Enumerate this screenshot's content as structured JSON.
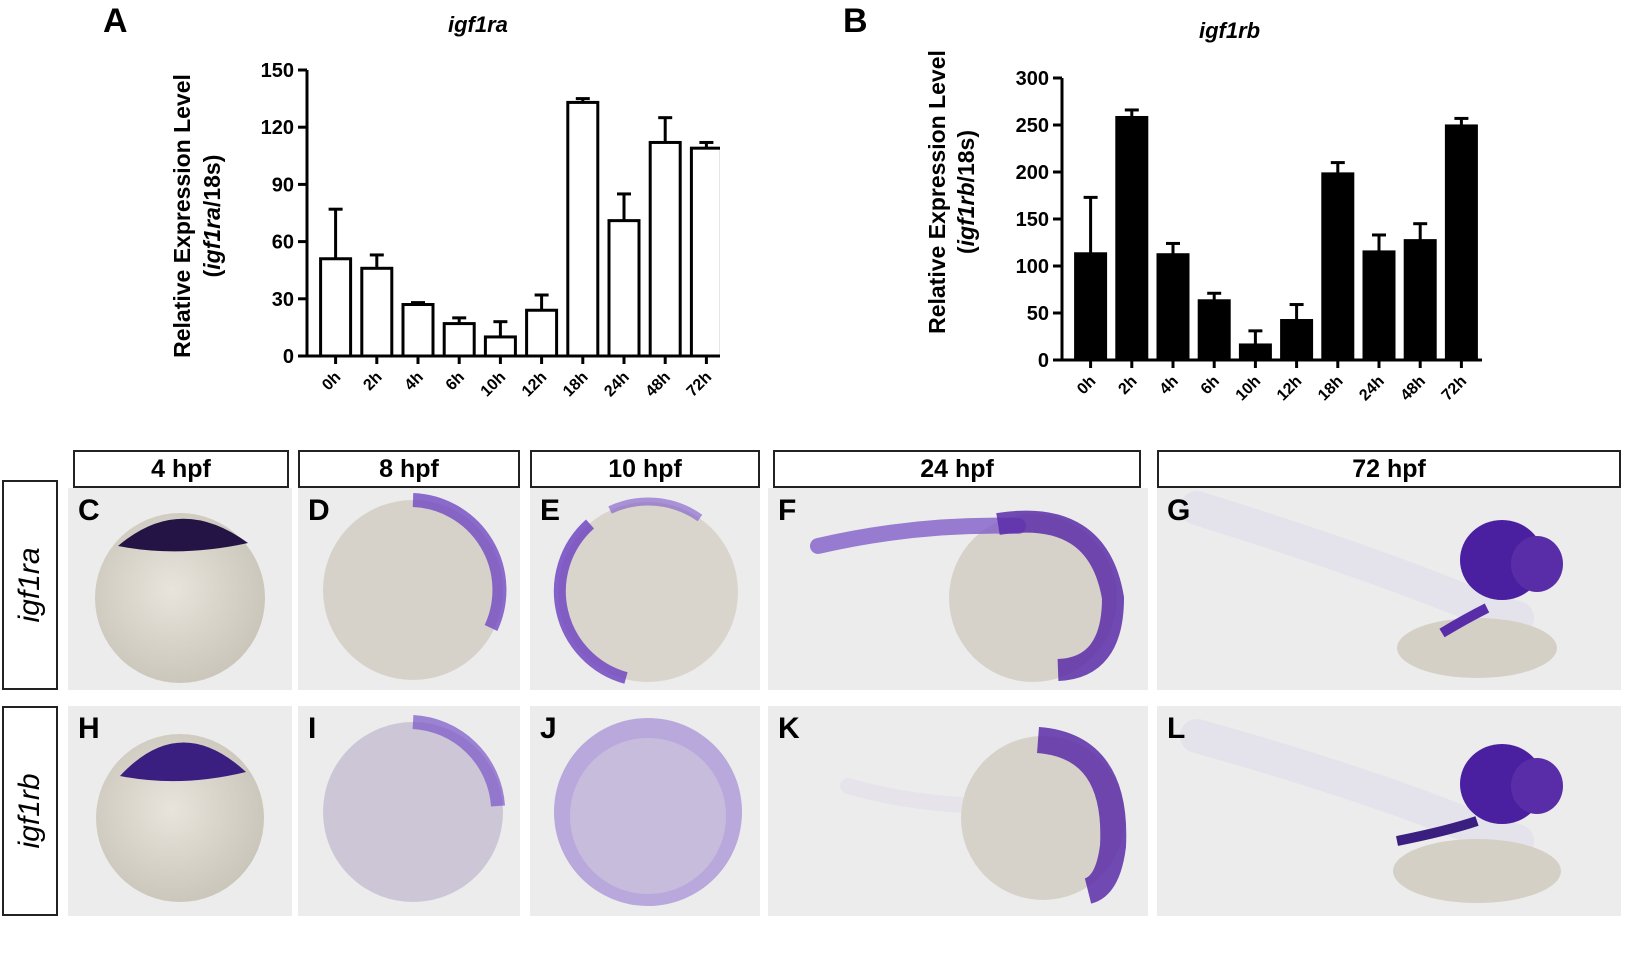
{
  "panels": {
    "a_letter": "A",
    "b_letter": "B"
  },
  "chart_data": [
    {
      "type": "bar",
      "title": "igf1ra",
      "ylabel_line1": "Relative Expression Level",
      "ylabel_gene": "igf1ra",
      "ylabel_rest": "/18s",
      "categories": [
        "0h",
        "2h",
        "4h",
        "6h",
        "10h",
        "12h",
        "18h",
        "24h",
        "48h",
        "72h"
      ],
      "values": [
        51,
        46,
        27,
        17,
        10,
        24,
        133,
        71,
        112,
        109
      ],
      "errors": [
        26,
        7,
        1,
        3,
        8,
        8,
        2,
        14,
        13,
        3
      ],
      "yticks": [
        "0",
        "30",
        "60",
        "90",
        "120",
        "150"
      ],
      "ylim": [
        0,
        150
      ],
      "bar_fill": "#ffffff",
      "bar_stroke": "#000000"
    },
    {
      "type": "bar",
      "title": "igf1rb",
      "ylabel_line1": "Relative Expression Level",
      "ylabel_gene": "igf1rb",
      "ylabel_rest": "/18s",
      "categories": [
        "0h",
        "2h",
        "4h",
        "6h",
        "10h",
        "12h",
        "18h",
        "24h",
        "48h",
        "72h"
      ],
      "values": [
        113,
        258,
        112,
        63,
        16,
        42,
        198,
        115,
        127,
        249
      ],
      "errors": [
        60,
        8,
        12,
        8,
        15,
        17,
        12,
        18,
        18,
        8
      ],
      "yticks": [
        "0",
        "50",
        "100",
        "150",
        "200",
        "250",
        "300"
      ],
      "ylim": [
        0,
        300
      ],
      "bar_fill": "#000000",
      "bar_stroke": "#000000"
    }
  ],
  "stages": [
    "4 hpf",
    "8 hpf",
    "10 hpf",
    "24 hpf",
    "72 hpf"
  ],
  "genes": [
    "igf1ra",
    "igf1rb"
  ],
  "photo_letters": {
    "row1": [
      "C",
      "D",
      "E",
      "F",
      "G"
    ],
    "row2": [
      "H",
      "I",
      "J",
      "K",
      "L"
    ]
  },
  "colors": {
    "stain_dark": "#2a1550",
    "stain": "#5a2da8",
    "stain_light": "#8e6fd0",
    "embryo": "#dcd8cf",
    "photo_bg": "#ececec"
  }
}
